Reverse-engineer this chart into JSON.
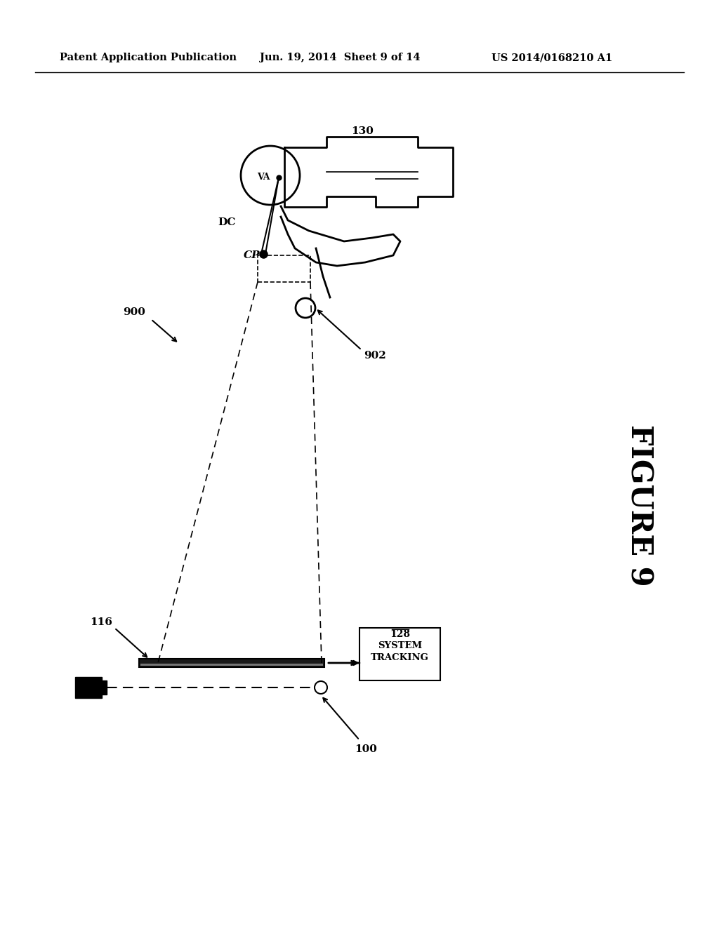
{
  "bg_color": "#ffffff",
  "header_left": "Patent Application Publication",
  "header_mid": "Jun. 19, 2014  Sheet 9 of 14",
  "header_right": "US 2014/0168210 A1",
  "figure_label": "FIGURE 9",
  "label_130": "130",
  "label_VA": "VA",
  "label_DC": "DC",
  "label_CP": "CP",
  "label_900": "900",
  "label_902": "902",
  "label_116": "116",
  "label_100": "100",
  "label_tracking_line1": "TRACKING",
  "label_tracking_line2": "SYSTEM",
  "label_128": "128"
}
